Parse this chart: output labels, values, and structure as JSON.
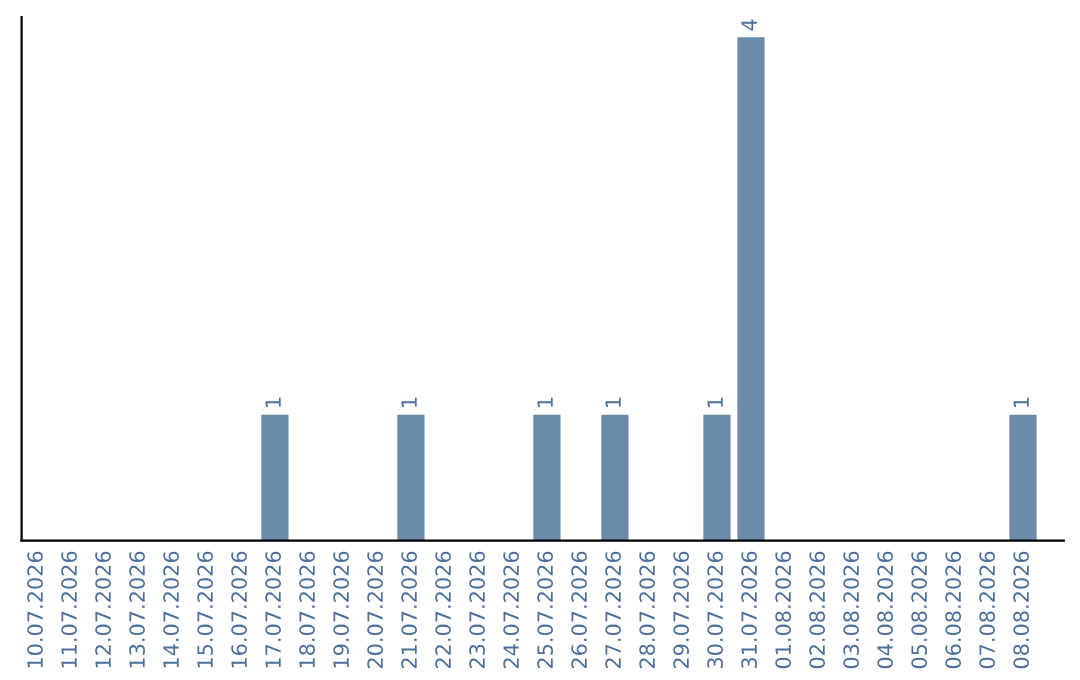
{
  "chart_data": {
    "type": "bar",
    "categories": [
      "10.07.2026",
      "11.07.2026",
      "12.07.2026",
      "13.07.2026",
      "14.07.2026",
      "15.07.2026",
      "16.07.2026",
      "17.07.2026",
      "18.07.2026",
      "19.07.2026",
      "20.07.2026",
      "21.07.2026",
      "22.07.2026",
      "23.07.2026",
      "24.07.2026",
      "25.07.2026",
      "26.07.2026",
      "27.07.2026",
      "28.07.2026",
      "29.07.2026",
      "30.07.2026",
      "31.07.2026",
      "01.08.2026",
      "02.08.2026",
      "03.08.2026",
      "04.08.2026",
      "05.08.2026",
      "06.08.2026",
      "07.08.2026",
      "08.08.2026"
    ],
    "values": [
      0,
      0,
      0,
      0,
      0,
      0,
      0,
      1,
      0,
      0,
      0,
      1,
      0,
      0,
      0,
      1,
      0,
      1,
      0,
      0,
      1,
      4,
      0,
      0,
      0,
      0,
      0,
      0,
      0,
      1
    ],
    "value_labels": [
      null,
      null,
      null,
      null,
      null,
      null,
      null,
      "1",
      null,
      null,
      null,
      "1",
      null,
      null,
      null,
      "1",
      null,
      "1",
      null,
      null,
      "1",
      "4",
      null,
      null,
      null,
      null,
      null,
      null,
      null,
      "1"
    ],
    "color": "#6a8aaa",
    "tick_labels": "x",
    "grid": false,
    "legend": false
  }
}
